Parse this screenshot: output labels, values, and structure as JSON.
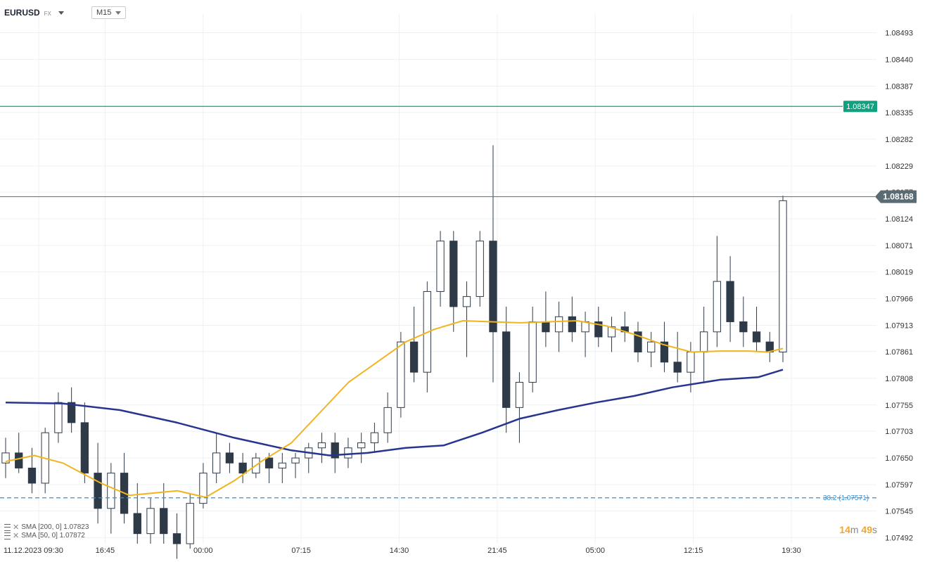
{
  "header": {
    "symbol": "EURUSD",
    "symbol_type": "FX",
    "timeframe": "M15"
  },
  "indicators": [
    {
      "label": "SMA [200, 0] 1.07823",
      "color": "#28358f"
    },
    {
      "label": "SMA [50, 0] 1.07872",
      "color": "#f0b41e"
    }
  ],
  "fib_label": "38.2 (1.07571)",
  "countdown": {
    "minutes": "14",
    "m_unit": "m",
    "seconds": "49",
    "s_unit": "s"
  },
  "colors": {
    "candle": "#2f3a48",
    "sma200": "#28358f",
    "sma50": "#f0b41e",
    "resistance": "#12a07e",
    "price_line": "#5b6b73",
    "fib": "#3a8fd0"
  },
  "chart_data": {
    "type": "candlestick",
    "ylim": [
      1.0748,
      1.0853
    ],
    "y_ticks": [
      "1.08493",
      "1.08440",
      "1.08387",
      "1.08335",
      "1.08282",
      "1.08229",
      "1.08177",
      "1.08124",
      "1.08071",
      "1.08019",
      "1.07966",
      "1.07913",
      "1.07861",
      "1.07808",
      "1.07755",
      "1.07703",
      "1.07650",
      "1.07597",
      "1.07545",
      "1.07492"
    ],
    "x_ticks": [
      "11.12.2023  09:30",
      "16:45",
      "00:00",
      "07:15",
      "14:30",
      "21:45",
      "05:00",
      "12:15",
      "19:30"
    ],
    "current_price": "1.08168",
    "resistance_level": "1.08347",
    "fib_level": 1.07571,
    "sma200_points": [
      [
        0,
        1.0776
      ],
      [
        30,
        1.07758
      ],
      [
        60,
        1.07745
      ],
      [
        90,
        1.0772
      ],
      [
        120,
        1.0769
      ],
      [
        150,
        1.07665
      ],
      [
        170,
        1.07655
      ],
      [
        190,
        1.0766
      ],
      [
        210,
        1.0767
      ],
      [
        230,
        1.07675
      ],
      [
        250,
        1.077
      ],
      [
        270,
        1.07728
      ],
      [
        290,
        1.07745
      ],
      [
        310,
        1.0776
      ],
      [
        330,
        1.07773
      ],
      [
        350,
        1.0779
      ],
      [
        375,
        1.07805
      ],
      [
        395,
        1.0781
      ],
      [
        408,
        1.07825
      ]
    ],
    "sma50_points": [
      [
        0,
        1.07643
      ],
      [
        15,
        1.07655
      ],
      [
        30,
        1.0764
      ],
      [
        50,
        1.076
      ],
      [
        65,
        1.07576
      ],
      [
        90,
        1.07585
      ],
      [
        105,
        1.07572
      ],
      [
        120,
        1.07605
      ],
      [
        135,
        1.07645
      ],
      [
        150,
        1.0768
      ],
      [
        165,
        1.0774
      ],
      [
        180,
        1.078
      ],
      [
        195,
        1.0784
      ],
      [
        210,
        1.0788
      ],
      [
        225,
        1.07905
      ],
      [
        240,
        1.07922
      ],
      [
        255,
        1.0792
      ],
      [
        270,
        1.07918
      ],
      [
        285,
        1.0792
      ],
      [
        300,
        1.07922
      ],
      [
        315,
        1.07912
      ],
      [
        330,
        1.07895
      ],
      [
        345,
        1.07875
      ],
      [
        360,
        1.0786
      ],
      [
        375,
        1.07862
      ],
      [
        390,
        1.07862
      ],
      [
        400,
        1.0786
      ],
      [
        408,
        1.07867
      ]
    ],
    "candles_ohlc": [
      [
        1.0764,
        1.0769,
        1.0761,
        1.0766
      ],
      [
        1.0766,
        1.077,
        1.0762,
        1.0763
      ],
      [
        1.0763,
        1.0767,
        1.0758,
        1.076
      ],
      [
        1.076,
        1.0771,
        1.0758,
        1.077
      ],
      [
        1.077,
        1.0778,
        1.0768,
        1.0776
      ],
      [
        1.0776,
        1.0779,
        1.077,
        1.0772
      ],
      [
        1.0772,
        1.0776,
        1.076,
        1.0762
      ],
      [
        1.0762,
        1.0768,
        1.0752,
        1.0755
      ],
      [
        1.0755,
        1.0764,
        1.075,
        1.0762
      ],
      [
        1.0762,
        1.0766,
        1.0752,
        1.0754
      ],
      [
        1.0754,
        1.076,
        1.0748,
        1.075
      ],
      [
        1.075,
        1.0757,
        1.0748,
        1.0755
      ],
      [
        1.0755,
        1.076,
        1.0748,
        1.075
      ],
      [
        1.075,
        1.0754,
        1.0745,
        1.0748
      ],
      [
        1.0748,
        1.0758,
        1.0747,
        1.0756
      ],
      [
        1.0756,
        1.0764,
        1.0755,
        1.0762
      ],
      [
        1.0762,
        1.077,
        1.076,
        1.0766
      ],
      [
        1.0766,
        1.0768,
        1.0762,
        1.0764
      ],
      [
        1.0764,
        1.0766,
        1.076,
        1.0762
      ],
      [
        1.0762,
        1.0766,
        1.0761,
        1.0765
      ],
      [
        1.0765,
        1.0766,
        1.076,
        1.0763
      ],
      [
        1.0763,
        1.0766,
        1.076,
        1.0764
      ],
      [
        1.0764,
        1.0766,
        1.0761,
        1.0765
      ],
      [
        1.0765,
        1.0768,
        1.0762,
        1.0767
      ],
      [
        1.0767,
        1.077,
        1.0764,
        1.0768
      ],
      [
        1.0768,
        1.077,
        1.0762,
        1.0765
      ],
      [
        1.0765,
        1.0769,
        1.0763,
        1.0767
      ],
      [
        1.0767,
        1.077,
        1.0764,
        1.0768
      ],
      [
        1.0768,
        1.0772,
        1.0766,
        1.077
      ],
      [
        1.077,
        1.0778,
        1.0768,
        1.0775
      ],
      [
        1.0775,
        1.079,
        1.0773,
        1.0788
      ],
      [
        1.0788,
        1.0795,
        1.078,
        1.0782
      ],
      [
        1.0782,
        1.08,
        1.0778,
        1.0798
      ],
      [
        1.0798,
        1.081,
        1.0795,
        1.0808
      ],
      [
        1.0808,
        1.081,
        1.079,
        1.0795
      ],
      [
        1.0795,
        1.08,
        1.0785,
        1.0797
      ],
      [
        1.0797,
        1.081,
        1.0795,
        1.0808
      ],
      [
        1.0808,
        1.0827,
        1.078,
        1.079
      ],
      [
        1.079,
        1.0795,
        1.077,
        1.0775
      ],
      [
        1.0775,
        1.0782,
        1.0768,
        1.078
      ],
      [
        1.078,
        1.0795,
        1.0778,
        1.0792
      ],
      [
        1.0792,
        1.0798,
        1.0787,
        1.079
      ],
      [
        1.079,
        1.0796,
        1.0786,
        1.0793
      ],
      [
        1.0793,
        1.0797,
        1.0788,
        1.079
      ],
      [
        1.079,
        1.0794,
        1.0785,
        1.0792
      ],
      [
        1.0792,
        1.0795,
        1.0787,
        1.0789
      ],
      [
        1.0789,
        1.0793,
        1.0786,
        1.0791
      ],
      [
        1.0791,
        1.0794,
        1.0788,
        1.079
      ],
      [
        1.079,
        1.0792,
        1.0784,
        1.0786
      ],
      [
        1.0786,
        1.079,
        1.0783,
        1.0788
      ],
      [
        1.0788,
        1.0792,
        1.0782,
        1.0784
      ],
      [
        1.0784,
        1.079,
        1.078,
        1.0782
      ],
      [
        1.0782,
        1.0788,
        1.0778,
        1.0786
      ],
      [
        1.0786,
        1.0795,
        1.078,
        1.079
      ],
      [
        1.079,
        1.0809,
        1.0787,
        1.08
      ],
      [
        1.08,
        1.0805,
        1.0788,
        1.0792
      ],
      [
        1.0792,
        1.0797,
        1.0787,
        1.079
      ],
      [
        1.079,
        1.0795,
        1.0786,
        1.0788
      ],
      [
        1.0788,
        1.079,
        1.0784,
        1.0786
      ],
      [
        1.0786,
        1.0817,
        1.0784,
        1.0816
      ]
    ]
  }
}
